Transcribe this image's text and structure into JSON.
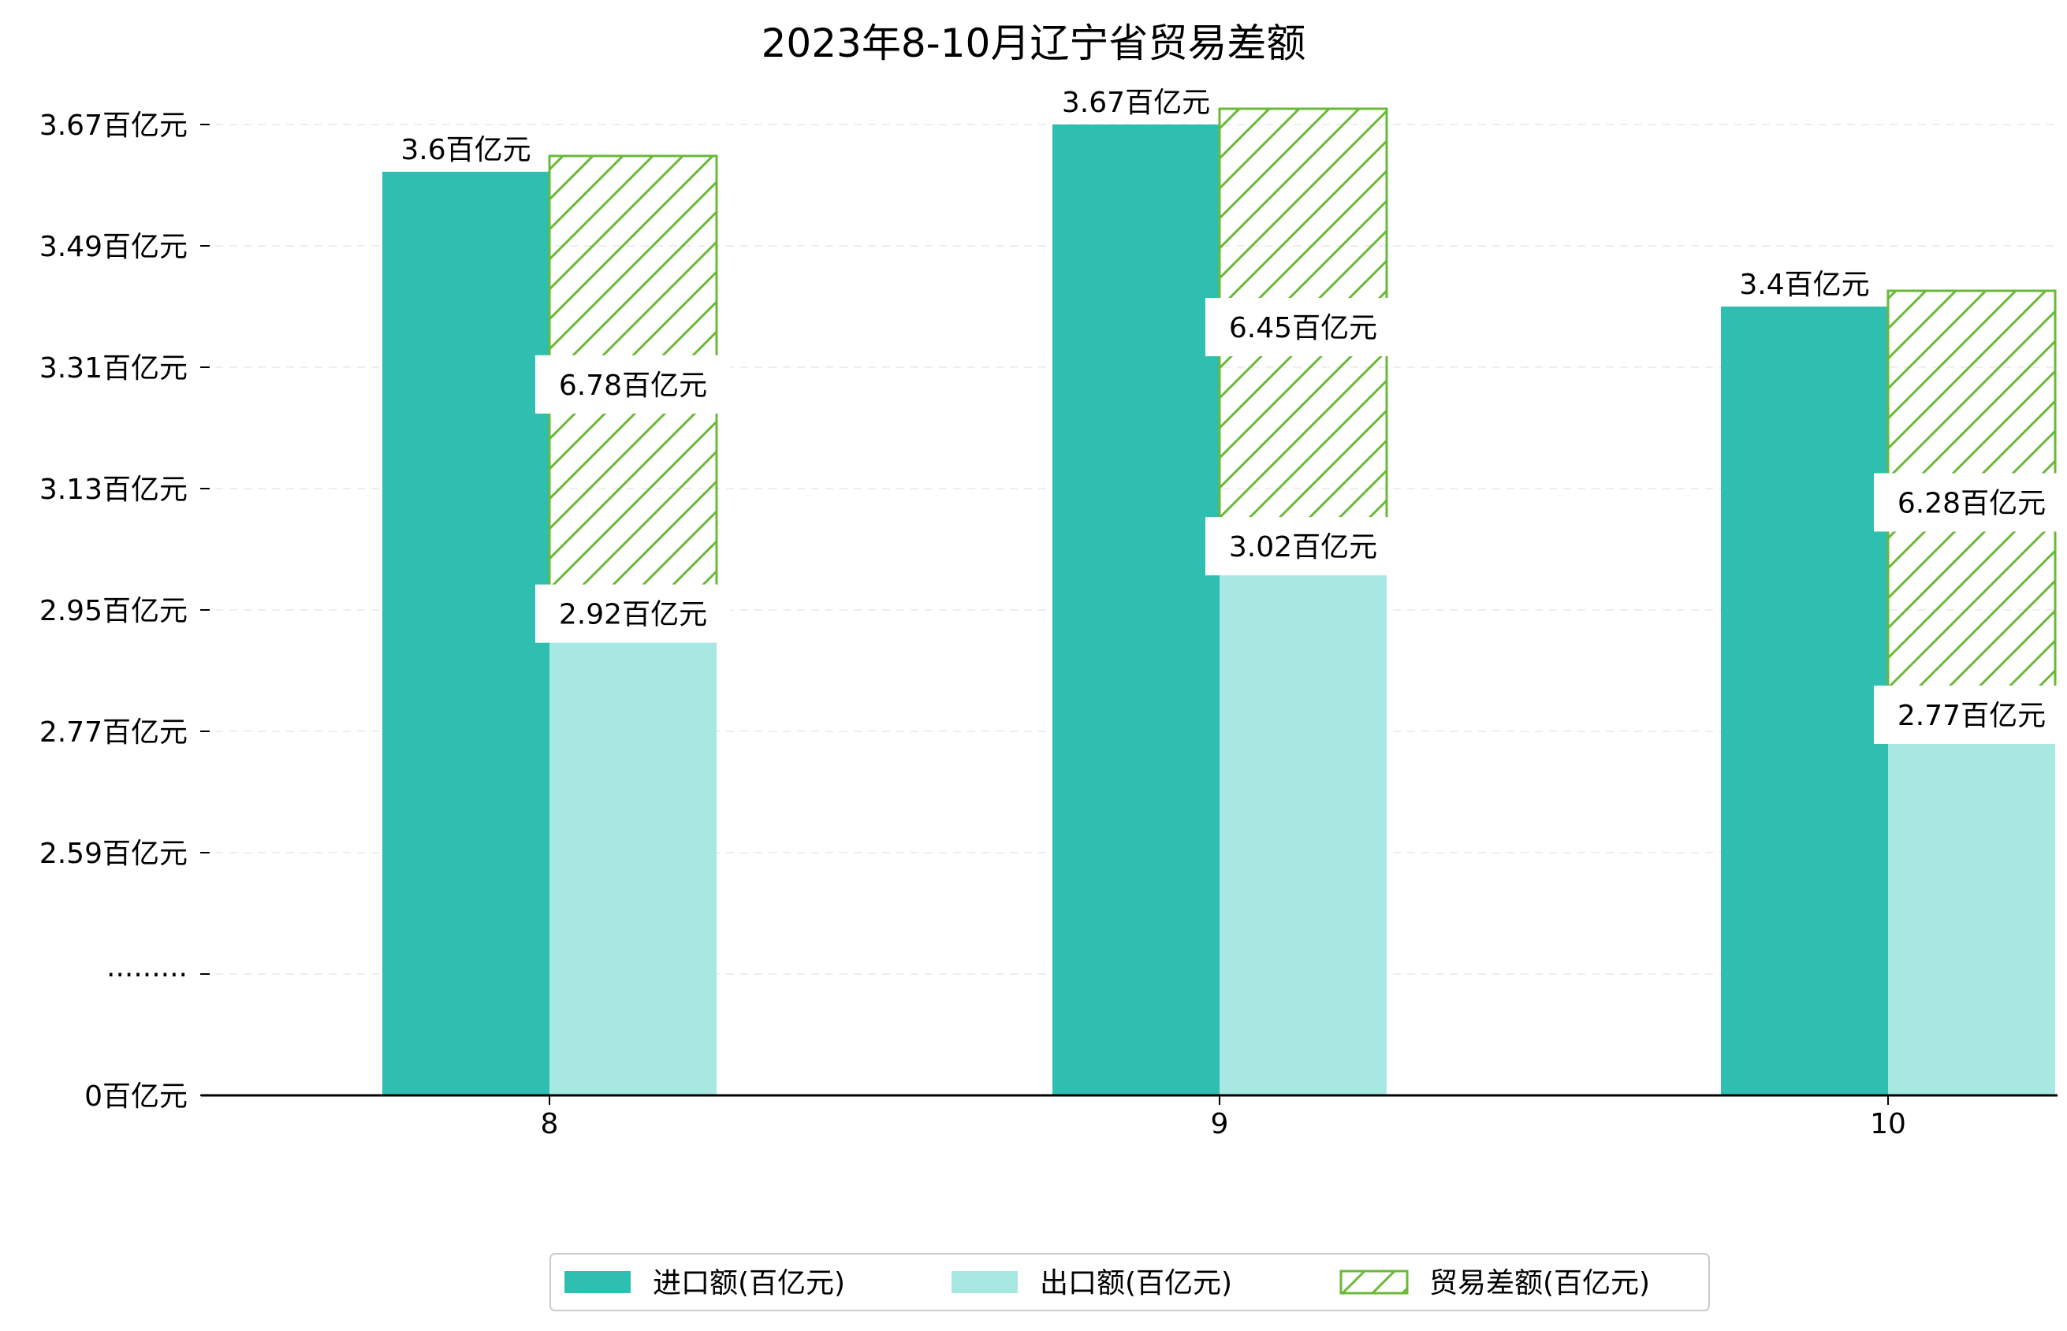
{
  "chart_data": {
    "type": "bar",
    "title": "2023年8-10月辽宁省贸易差额",
    "categories": [
      "8",
      "9",
      "10"
    ],
    "series": [
      {
        "name": "进口额(百亿元)",
        "values": [
          3.6,
          3.67,
          3.4
        ],
        "color": "#2ebfb0"
      },
      {
        "name": "出口额(百亿元)",
        "values": [
          2.92,
          3.02,
          2.77
        ],
        "color": "#a8e8e2"
      },
      {
        "name": "贸易差额(百亿元)",
        "values": [
          6.78,
          6.45,
          6.28
        ],
        "color": "#6ab938",
        "pattern": "hatch"
      }
    ],
    "bar_labels": {
      "import": [
        "3.6百亿元",
        "3.67百亿元",
        "3.4百亿元"
      ],
      "export": [
        "2.92百亿元",
        "3.02百亿元",
        "2.77百亿元"
      ],
      "balance": [
        "6.78百亿元",
        "6.45百亿元",
        "6.28百亿元"
      ]
    },
    "y_ticks": [
      {
        "value": 0,
        "label": "0百亿元"
      },
      {
        "value": null,
        "label": "·········"
      },
      {
        "value": 2.59,
        "label": "2.59百亿元"
      },
      {
        "value": 2.77,
        "label": "2.77百亿元"
      },
      {
        "value": 2.95,
        "label": "2.95百亿元"
      },
      {
        "value": 3.13,
        "label": "3.13百亿元"
      },
      {
        "value": 3.31,
        "label": "3.31百亿元"
      },
      {
        "value": 3.49,
        "label": "3.49百亿元"
      },
      {
        "value": 3.67,
        "label": "3.67百亿元"
      }
    ],
    "y_axis": {
      "scale": "broken",
      "break_between": [
        0,
        2.59
      ]
    },
    "grid": "horizontal dashed",
    "legend_position": "bottom-center"
  }
}
